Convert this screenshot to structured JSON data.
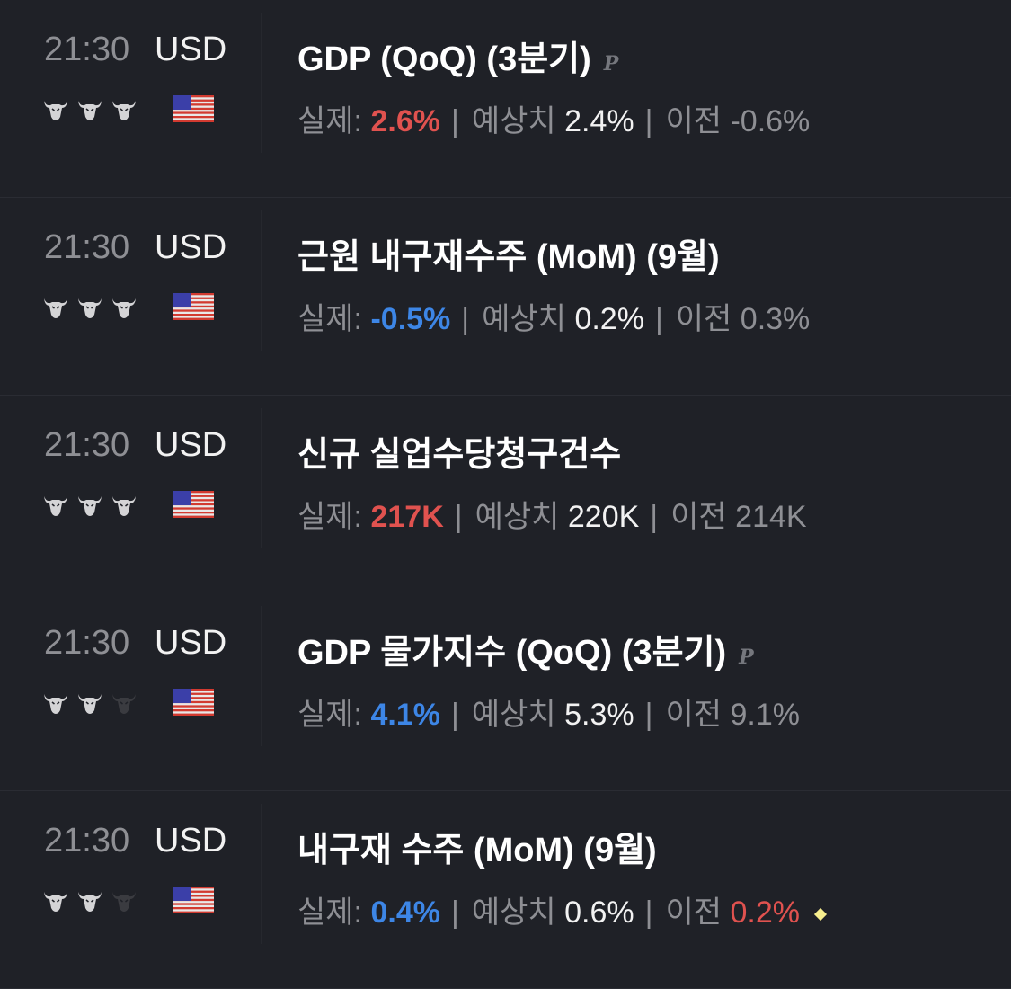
{
  "labels": {
    "actual": "실제:",
    "forecast": "예상치",
    "previous": "이전",
    "sep": "|"
  },
  "colors": {
    "bg": "#1f2127",
    "positive": "#e0524f",
    "negative": "#3d86e6",
    "dim_bull": "#3a3b40",
    "bull": "#d4d4d6"
  },
  "events": [
    {
      "time": "21:30",
      "currency": "USD",
      "importance": 3,
      "title": "GDP (QoQ) (3분기)",
      "prelim": "P",
      "actual": "2.6%",
      "actual_color": "red",
      "forecast": "2.4%",
      "previous": "-0.6%",
      "previous_color": "gray",
      "revised": false
    },
    {
      "time": "21:30",
      "currency": "USD",
      "importance": 3,
      "title": "근원 내구재수주 (MoM) (9월)",
      "prelim": "",
      "actual": "-0.5%",
      "actual_color": "blue",
      "forecast": "0.2%",
      "previous": "0.3%",
      "previous_color": "gray",
      "revised": false
    },
    {
      "time": "21:30",
      "currency": "USD",
      "importance": 3,
      "title": "신규 실업수당청구건수",
      "prelim": "",
      "actual": "217K",
      "actual_color": "red",
      "forecast": "220K",
      "previous": "214K",
      "previous_color": "gray",
      "revised": false
    },
    {
      "time": "21:30",
      "currency": "USD",
      "importance": 2,
      "title": "GDP 물가지수 (QoQ) (3분기)",
      "prelim": "P",
      "actual": "4.1%",
      "actual_color": "blue",
      "forecast": "5.3%",
      "previous": "9.1%",
      "previous_color": "gray",
      "revised": false
    },
    {
      "time": "21:30",
      "currency": "USD",
      "importance": 2,
      "title": "내구재 수주 (MoM) (9월)",
      "prelim": "",
      "actual": "0.4%",
      "actual_color": "blue",
      "forecast": "0.6%",
      "previous": "0.2%",
      "previous_color": "red",
      "revised": true
    }
  ]
}
